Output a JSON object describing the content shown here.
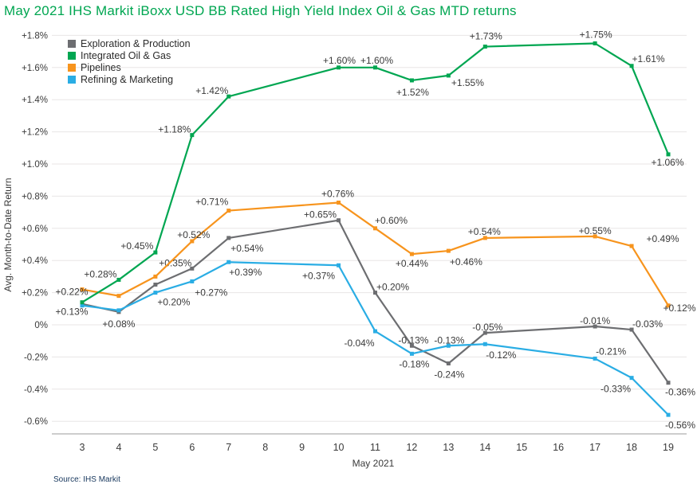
{
  "title": "May 2021 IHS Markit iBoxx USD BB Rated High Yield Index Oil & Gas MTD returns",
  "source": "Source: IHS  Markit",
  "chart_data": {
    "type": "line",
    "title": "May 2021 IHS Markit iBoxx USD BB Rated High Yield Index Oil & Gas MTD returns",
    "xlabel": "May 2021",
    "ylabel": "Avg. Month-to-Date Return",
    "grid": true,
    "legend_position": "top-left",
    "grid_color": "#e8e6e6",
    "axis_color": "#9b9b9b",
    "ylim": [
      -0.68,
      1.9
    ],
    "x_ticks": [
      3,
      4,
      5,
      6,
      7,
      8,
      9,
      10,
      11,
      12,
      13,
      14,
      15,
      16,
      17,
      18,
      19
    ],
    "x_days": [
      3,
      4,
      5,
      6,
      7,
      10,
      11,
      12,
      13,
      14,
      17,
      18,
      19
    ],
    "y_ticks": [
      {
        "value": 1.8,
        "label": "+1.8%"
      },
      {
        "value": 1.6,
        "label": "+1.6%"
      },
      {
        "value": 1.4,
        "label": "+1.4%"
      },
      {
        "value": 1.2,
        "label": "+1.2%"
      },
      {
        "value": 1.0,
        "label": "+1.0%"
      },
      {
        "value": 0.8,
        "label": "+0.8%"
      },
      {
        "value": 0.6,
        "label": "+0.6%"
      },
      {
        "value": 0.4,
        "label": "+0.4%"
      },
      {
        "value": 0.2,
        "label": "+0.2%"
      },
      {
        "value": 0.0,
        "label": "0%"
      },
      {
        "value": -0.2,
        "label": "-0.2%"
      },
      {
        "value": -0.4,
        "label": "-0.4%"
      },
      {
        "value": -0.6,
        "label": "-0.6%"
      }
    ],
    "draw_order": [
      0,
      2,
      3,
      1
    ],
    "series": [
      {
        "name": "Exploration & Production",
        "color": "#6d6e71",
        "values": [
          0.13,
          0.08,
          0.25,
          0.35,
          0.54,
          0.65,
          0.2,
          -0.13,
          -0.24,
          -0.05,
          -0.01,
          -0.03,
          -0.36
        ],
        "labels": [
          {
            "day": 3,
            "text": "+0.13%",
            "dx": -13,
            "dy": 10
          },
          {
            "day": 4,
            "text": "+0.08%",
            "dx": 0,
            "dy": 15
          },
          {
            "day": 6,
            "text": "+0.35%",
            "dx": -21,
            "dy": -7
          },
          {
            "day": 7,
            "text": "+0.54%",
            "dx": 23,
            "dy": 13
          },
          {
            "day": 10,
            "text": "+0.65%",
            "dx": -23,
            "dy": -7
          },
          {
            "day": 11,
            "text": "+0.20%",
            "dx": 22,
            "dy": -7
          },
          {
            "day": 12,
            "text": "-0.13%",
            "dx": 2,
            "dy": -7
          },
          {
            "day": 13,
            "text": "-0.24%",
            "dx": 1,
            "dy": 14
          },
          {
            "day": 14,
            "text": "-0.05%",
            "dx": 3,
            "dy": -7
          },
          {
            "day": 17,
            "text": "-0.01%",
            "dx": 0,
            "dy": -7
          },
          {
            "day": 18,
            "text": "-0.03%",
            "dx": 20,
            "dy": -7
          },
          {
            "day": 19,
            "text": "-0.36%",
            "dx": 15,
            "dy": 12
          }
        ]
      },
      {
        "name": "Integrated Oil & Gas",
        "color": "#00a651",
        "values": [
          0.14,
          0.28,
          0.45,
          1.18,
          1.42,
          1.6,
          1.6,
          1.52,
          1.55,
          1.73,
          1.75,
          1.61,
          1.06
        ],
        "labels": [
          {
            "day": 4,
            "text": "+0.28%",
            "dx": -23,
            "dy": -7
          },
          {
            "day": 5,
            "text": "+0.45%",
            "dx": -23,
            "dy": -8
          },
          {
            "day": 6,
            "text": "+1.18%",
            "dx": -22,
            "dy": -7
          },
          {
            "day": 7,
            "text": "+1.42%",
            "dx": -21,
            "dy": -7
          },
          {
            "day": 10,
            "text": "+1.60%",
            "dx": 1,
            "dy": -9
          },
          {
            "day": 11,
            "text": "+1.60%",
            "dx": 2,
            "dy": -9
          },
          {
            "day": 12,
            "text": "+1.52%",
            "dx": 1,
            "dy": 15
          },
          {
            "day": 13,
            "text": "+1.55%",
            "dx": 24,
            "dy": 9
          },
          {
            "day": 14,
            "text": "+1.73%",
            "dx": 1,
            "dy": -13
          },
          {
            "day": 17,
            "text": "+1.75%",
            "dx": 1,
            "dy": -11
          },
          {
            "day": 18,
            "text": "+1.61%",
            "dx": 21,
            "dy": -9
          },
          {
            "day": 19,
            "text": "+1.06%",
            "dx": -1,
            "dy": 10
          }
        ]
      },
      {
        "name": "Pipelines",
        "color": "#f7941d",
        "values": [
          0.22,
          0.18,
          0.3,
          0.52,
          0.71,
          0.76,
          0.6,
          0.44,
          0.46,
          0.54,
          0.55,
          0.49,
          0.12
        ],
        "labels": [
          {
            "day": 3,
            "text": "+0.22%",
            "dx": -13,
            "dy": 3
          },
          {
            "day": 6,
            "text": "+0.52%",
            "dx": 2,
            "dy": -8
          },
          {
            "day": 7,
            "text": "+0.71%",
            "dx": -21,
            "dy": -11
          },
          {
            "day": 10,
            "text": "+0.76%",
            "dx": -1,
            "dy": -11
          },
          {
            "day": 11,
            "text": "+0.60%",
            "dx": 20,
            "dy": -10
          },
          {
            "day": 12,
            "text": "+0.44%",
            "dx": 0,
            "dy": 12
          },
          {
            "day": 13,
            "text": "+0.46%",
            "dx": 22,
            "dy": 14
          },
          {
            "day": 14,
            "text": "+0.54%",
            "dx": -1,
            "dy": -8
          },
          {
            "day": 17,
            "text": "+0.55%",
            "dx": 0,
            "dy": -7
          },
          {
            "day": 18,
            "text": "+0.49%",
            "dx": 39,
            "dy": -9
          },
          {
            "day": 19,
            "text": "+0.12%",
            "dx": 14,
            "dy": 3
          }
        ]
      },
      {
        "name": "Refining & Marketing",
        "color": "#2aade4",
        "values": [
          0.12,
          0.09,
          0.2,
          0.27,
          0.39,
          0.37,
          -0.04,
          -0.18,
          -0.13,
          -0.12,
          -0.21,
          -0.33,
          -0.56
        ],
        "labels": [
          {
            "day": 5,
            "text": "+0.20%",
            "dx": 23,
            "dy": 12
          },
          {
            "day": 6,
            "text": "+0.27%",
            "dx": 24,
            "dy": 14
          },
          {
            "day": 7,
            "text": "+0.39%",
            "dx": 21,
            "dy": 13
          },
          {
            "day": 10,
            "text": "+0.37%",
            "dx": -25,
            "dy": 13
          },
          {
            "day": 11,
            "text": "-0.04%",
            "dx": -20,
            "dy": 15
          },
          {
            "day": 12,
            "text": "-0.18%",
            "dx": 3,
            "dy": 13
          },
          {
            "day": 13,
            "text": "-0.13%",
            "dx": 1,
            "dy": -7
          },
          {
            "day": 14,
            "text": "-0.12%",
            "dx": 20,
            "dy": 14
          },
          {
            "day": 17,
            "text": "-0.21%",
            "dx": 20,
            "dy": -9
          },
          {
            "day": 18,
            "text": "-0.33%",
            "dx": -20,
            "dy": 14
          },
          {
            "day": 19,
            "text": "-0.56%",
            "dx": 15,
            "dy": 13
          }
        ]
      }
    ]
  }
}
